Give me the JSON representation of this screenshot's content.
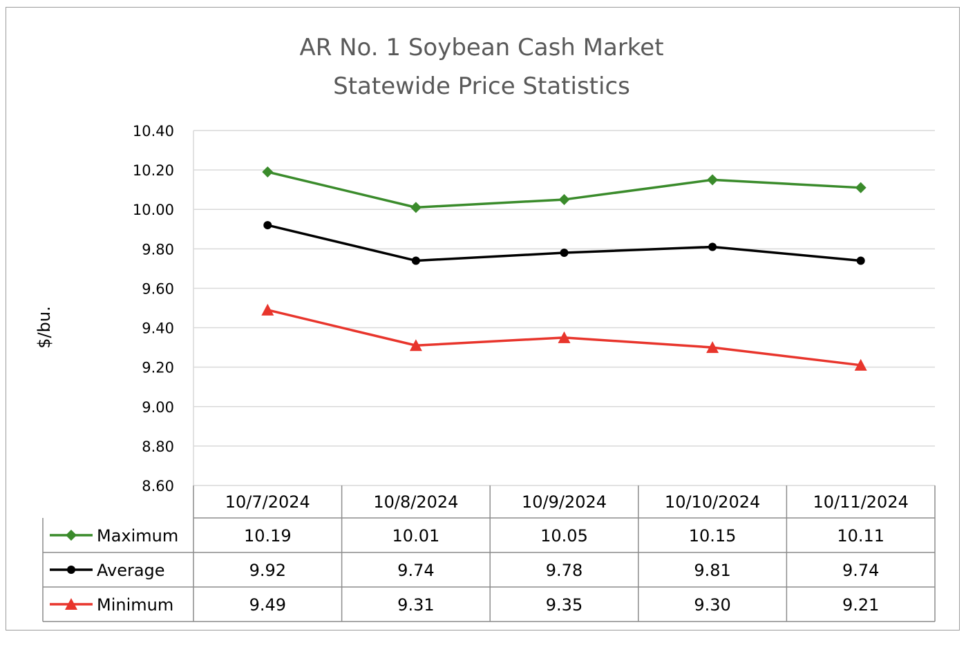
{
  "chart_data": {
    "type": "line",
    "title": [
      "AR No. 1 Soybean Cash Market",
      "Statewide Price Statistics"
    ],
    "ylabel": "$/bu.",
    "ylim": [
      8.6,
      10.4
    ],
    "y_ticks": [
      "10.40",
      "10.20",
      "10.00",
      "9.80",
      "9.60",
      "9.40",
      "9.20",
      "9.00",
      "8.80",
      "8.60"
    ],
    "categories": [
      "10/7/2024",
      "10/8/2024",
      "10/9/2024",
      "10/10/2024",
      "10/11/2024"
    ],
    "grid": true,
    "legend": "data-table",
    "series": [
      {
        "name": "Maximum",
        "color": "#3a8b2b",
        "marker": "diamond",
        "values": [
          10.19,
          10.01,
          10.05,
          10.15,
          10.11
        ],
        "labels": [
          "10.19",
          "10.01",
          "10.05",
          "10.15",
          "10.11"
        ]
      },
      {
        "name": "Average",
        "color": "#000000",
        "marker": "circle",
        "values": [
          9.92,
          9.74,
          9.78,
          9.81,
          9.74
        ],
        "labels": [
          "9.92",
          "9.74",
          "9.78",
          "9.81",
          "9.74"
        ]
      },
      {
        "name": "Minimum",
        "color": "#e8352c",
        "marker": "triangle",
        "values": [
          9.49,
          9.31,
          9.35,
          9.3,
          9.21
        ],
        "labels": [
          "9.49",
          "9.31",
          "9.35",
          "9.30",
          "9.21"
        ]
      }
    ]
  }
}
